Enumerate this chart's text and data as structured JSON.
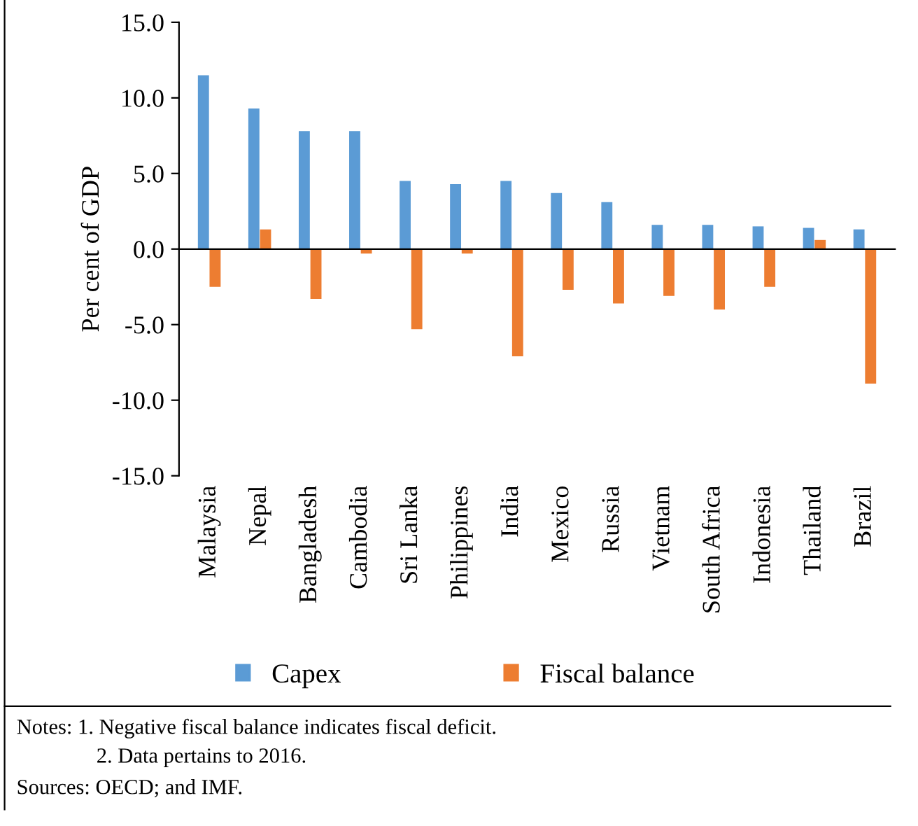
{
  "chart_data": {
    "type": "bar",
    "ylabel": "Per cent of GDP",
    "categories": [
      "Malaysia",
      "Nepal",
      "Bangladesh",
      "Cambodia",
      "Sri Lanka",
      "Philippines",
      "India",
      "Mexico",
      "Russia",
      "Vietnam",
      "South Africa",
      "Indonesia",
      "Thailand",
      "Brazil"
    ],
    "series": [
      {
        "name": "Capex",
        "color": "#5b9bd5",
        "values": [
          11.5,
          9.3,
          7.8,
          7.8,
          4.5,
          4.3,
          4.5,
          3.7,
          3.1,
          1.6,
          1.6,
          1.5,
          1.4,
          1.3
        ]
      },
      {
        "name": "Fiscal balance",
        "color": "#ed7d31",
        "values": [
          -2.5,
          1.3,
          -3.3,
          -0.3,
          -5.3,
          -0.3,
          -7.1,
          -2.7,
          -3.6,
          -3.1,
          -4.0,
          -2.5,
          0.6,
          -8.9
        ]
      }
    ],
    "ylim": [
      -15,
      15
    ],
    "yticks": [
      {
        "value": -15,
        "label": "-15.0"
      },
      {
        "value": -10,
        "label": "-10.0"
      },
      {
        "value": -5,
        "label": "-5.0"
      },
      {
        "value": 0,
        "label": "0.0"
      },
      {
        "value": 5,
        "label": "5.0"
      },
      {
        "value": 10,
        "label": "10.0"
      },
      {
        "value": 15,
        "label": "15.0"
      }
    ],
    "legend": "bottom",
    "annotations": [
      "Notes: 1. Negative fiscal balance indicates fiscal deficit.",
      "2. Data pertains to 2016.",
      "Sources: OECD; and IMF."
    ]
  }
}
